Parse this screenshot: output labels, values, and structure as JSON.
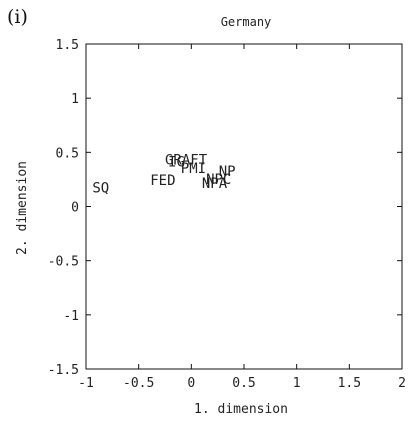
{
  "panel_label": "(i)",
  "chart_data": {
    "type": "scatter",
    "title": "Germany",
    "xlabel": "1. dimension",
    "ylabel": "2. dimension",
    "xlim": [
      -1,
      2
    ],
    "ylim": [
      -1.5,
      1.5
    ],
    "xticks": [
      -1,
      -0.5,
      0,
      0.5,
      1,
      1.5,
      2
    ],
    "yticks": [
      -1.5,
      -1,
      -0.5,
      0,
      0.5,
      1,
      1.5
    ],
    "xtick_labels": [
      "-1",
      "-0.5",
      "0",
      "0.5",
      "1",
      "1.5",
      "2"
    ],
    "ytick_labels": [
      "-1.5",
      "-1",
      "-0.5",
      "0",
      "0.5",
      "1",
      "1.5"
    ],
    "grid": false,
    "points": [
      {
        "label": "SQ",
        "x": -0.86,
        "y": 0.13
      },
      {
        "label": "FED",
        "x": -0.27,
        "y": 0.2
      },
      {
        "label": "IG",
        "x": -0.14,
        "y": 0.37
      },
      {
        "label": "GRAFT",
        "x": -0.05,
        "y": 0.39
      },
      {
        "label": "PMI",
        "x": 0.02,
        "y": 0.31
      },
      {
        "label": "NP",
        "x": 0.34,
        "y": 0.28
      },
      {
        "label": "NPA",
        "x": 0.22,
        "y": 0.17
      },
      {
        "label": "NPC",
        "x": 0.26,
        "y": 0.21
      }
    ]
  }
}
